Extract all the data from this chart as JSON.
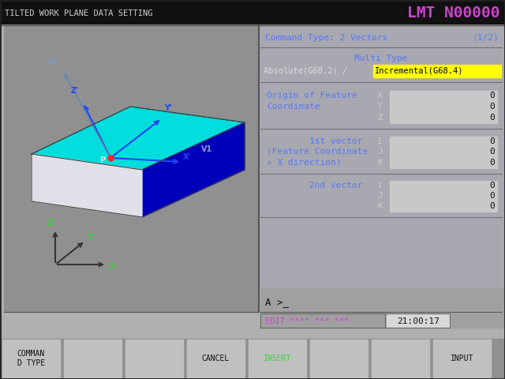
{
  "bg_color": "#b0b0b0",
  "header_bg": "#111111",
  "title_left": "TILTED WORK PLANE DATA SETTING",
  "title_right": "LMT N00000",
  "title_left_color": "#cccccc",
  "title_right_color": "#cc44cc",
  "panel_left_bg": "#909090",
  "panel_right_bg": "#a8a8b0",
  "command_type_text": "Command Type: 2 Vectors",
  "command_type_page": "(1/2)",
  "label_color": "#5577ff",
  "multi_type_label": "Multi Type",
  "absolute_text": "Absolute(G68.2) / ",
  "incremental_text": "Incremental(G68.4)",
  "incremental_bg": "#ffff00",
  "origin_label1": "Origin of Feature",
  "origin_label2": "Coordinate",
  "vec1_label1": "1st vector",
  "vec1_label2": "(Feature Coordinate",
  "vec1_label3": "+ X direction)",
  "vec2_label": "2nd vector",
  "field_bg": "#c8c8c8",
  "edit_text": "EDIT **** *** ***",
  "edit_color": "#cc44cc",
  "time_text": "21:00:17",
  "prompt_text": "A >_",
  "cyan_color": "#00dddd",
  "blue_color": "#0000bb",
  "white_side_color": "#e0e0e8",
  "arrow_color": "#2244ee",
  "axis_green": "#44cc44",
  "axis_black": "#333333",
  "insert_color": "#44cc44"
}
